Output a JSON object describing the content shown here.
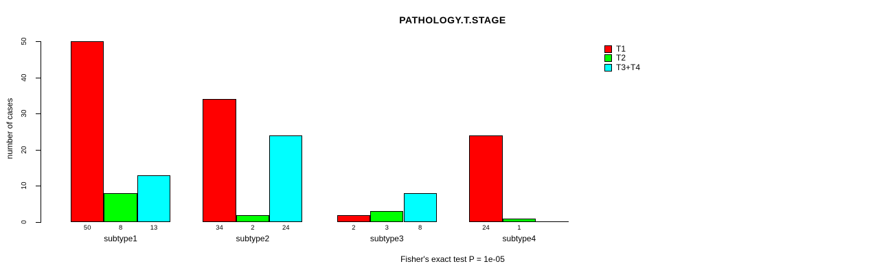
{
  "chart_data": {
    "type": "bar",
    "title": "PATHOLOGY.T.STAGE",
    "ylabel": "number of cases",
    "xlabel": "",
    "categories": [
      "subtype1",
      "subtype2",
      "subtype3",
      "subtype4"
    ],
    "series": [
      {
        "name": "T1",
        "color": "#FF0000",
        "values": [
          50,
          34,
          2,
          24
        ]
      },
      {
        "name": "T2",
        "color": "#00FF00",
        "values": [
          8,
          2,
          3,
          1
        ]
      },
      {
        "name": "T3+T4",
        "color": "#00FFFF",
        "values": [
          13,
          24,
          8,
          0
        ]
      }
    ],
    "ylim": [
      0,
      50
    ],
    "yticks": [
      0,
      10,
      20,
      30,
      40,
      50
    ],
    "bar_value_labels_shown": true,
    "zero_bars_drawn_as_baseline": true,
    "grid": false,
    "legend": {
      "position": "top-right",
      "entries": [
        "T1",
        "T2",
        "T3+T4"
      ]
    },
    "caption": "Fisher's exact test P = 1e-05",
    "axis_color": "#000000",
    "bar_border_color": "#000000",
    "background_color": "#FFFFFF"
  }
}
